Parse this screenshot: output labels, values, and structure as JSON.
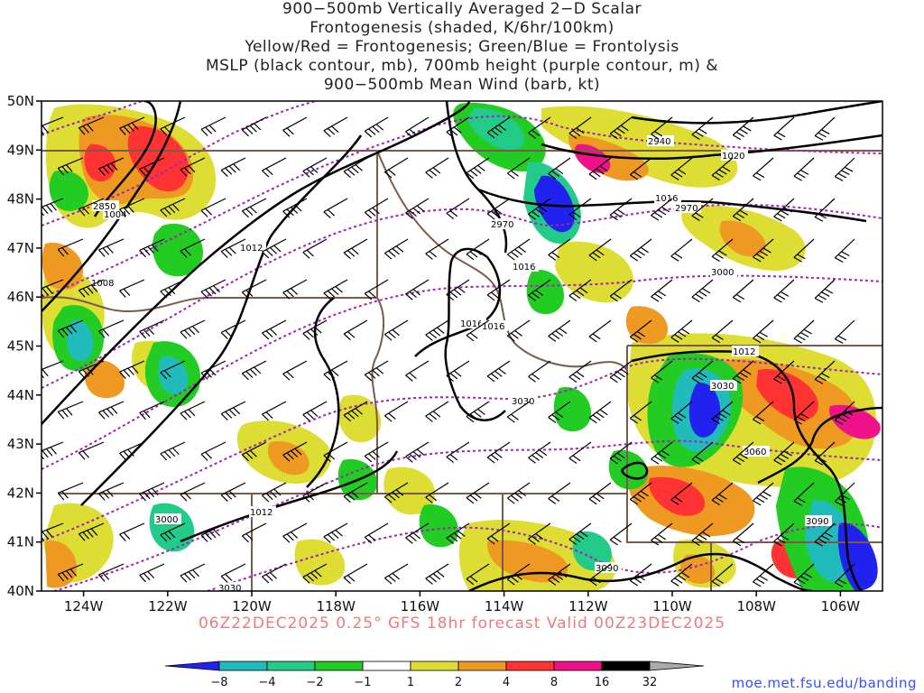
{
  "title_lines": [
    "900−500mb Vertically Averaged 2−D Scalar",
    "Frontogenesis (shaded, K/6hr/100km)",
    "Yellow/Red = Frontogenesis;  Green/Blue = Frontolysis",
    "MSLP (black contour, mb), 700mb height (purple contour, m) &",
    "900−500mb Mean Wind (barb, kt)"
  ],
  "map": {
    "lon_range": [
      -125,
      -105
    ],
    "lat_range": [
      40,
      50
    ],
    "lon_ticks": [
      "124W",
      "122W",
      "120W",
      "118W",
      "116W",
      "114W",
      "112W",
      "110W",
      "108W",
      "106W"
    ],
    "lat_ticks": [
      "50N",
      "49N",
      "48N",
      "47N",
      "46N",
      "45N",
      "44N",
      "43N",
      "42N",
      "41N",
      "40N"
    ],
    "colors": {
      "mslp_contour": "#000000",
      "height_contour": "#a020c0",
      "state_borders": "#7a5a48",
      "wind_barbs": "#000000"
    },
    "mslp_labels": [
      "1004",
      "1008",
      "1012",
      "1016",
      "1016",
      "1016",
      "1016",
      "1020",
      "1012",
      "1012"
    ],
    "height_labels": [
      "2850",
      "2940",
      "2970",
      "2970",
      "3000",
      "3000",
      "3030",
      "3030",
      "3030",
      "3060",
      "3090",
      "3090"
    ]
  },
  "run_info": "06Z22DEC2025 0.25° GFS 18hr forecast Valid 00Z23DEC2025",
  "colorbar": {
    "colors": [
      "#2222ee",
      "#22bbbb",
      "#22cc88",
      "#22cc22",
      "#ffffff",
      "#dddd33",
      "#ee9922",
      "#ff3333",
      "#ee1188",
      "#000000",
      "#aaaaaa"
    ],
    "labels": [
      "−8",
      "−4",
      "−2",
      "−1",
      "1",
      "2",
      "4",
      "8",
      "16",
      "32"
    ]
  },
  "credit": "moe.met.fsu.edu/banding"
}
